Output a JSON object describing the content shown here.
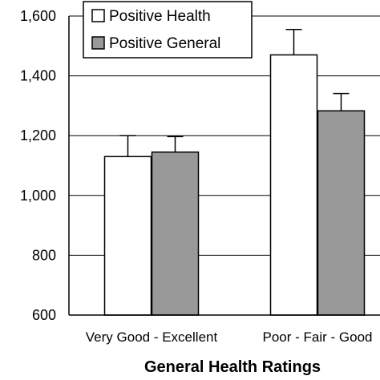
{
  "chart_data": {
    "type": "bar",
    "title": "",
    "xlabel": "General Health Ratings",
    "ylabel": "",
    "ylim": [
      600,
      1600
    ],
    "yticks": [
      600,
      800,
      1000,
      1200,
      1400,
      1600
    ],
    "ytick_labels": [
      "600",
      "800",
      "1,000",
      "1,200",
      "1,400",
      "1,600"
    ],
    "grid": "horizontal",
    "legend_position": "top-left",
    "categories": [
      "Very Good - Excellent",
      "Poor - Fair - Good"
    ],
    "series": [
      {
        "name": "Positive Health",
        "values": [
          1130,
          1470
        ],
        "errors": [
          70,
          85
        ],
        "color": "#ffffff"
      },
      {
        "name": "Positive General",
        "values": [
          1145,
          1283
        ],
        "errors": [
          52,
          58
        ],
        "color": "#999999"
      }
    ]
  }
}
